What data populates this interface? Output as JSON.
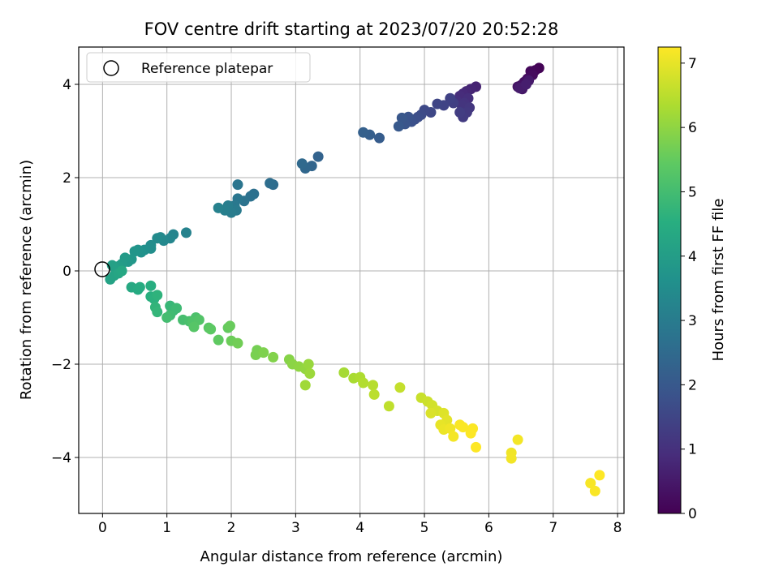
{
  "chart_data": {
    "type": "scatter",
    "title": "FOV centre drift starting at 2023/07/20 20:52:28",
    "xlabel": "Angular distance from reference (arcmin)",
    "ylabel": "Rotation from reference (arcmin)",
    "xlim": [
      -0.37,
      8.1
    ],
    "ylim": [
      -5.2,
      4.8
    ],
    "xticks": [
      0,
      1,
      2,
      3,
      4,
      5,
      6,
      7,
      8
    ],
    "yticks": [
      -4,
      -2,
      0,
      2,
      4
    ],
    "grid": true,
    "legend": {
      "placement": "top-left",
      "entries": [
        "Reference platepar"
      ]
    },
    "reference_point": {
      "name": "Reference platepar",
      "x": 0,
      "y": 0
    },
    "colorbar": {
      "label": "Hours from first FF file",
      "range": [
        0,
        7.25
      ],
      "ticks": [
        0,
        1,
        2,
        3,
        4,
        5,
        6,
        7
      ],
      "colormap": "viridis"
    },
    "points": [
      [
        6.78,
        4.35,
        0.05
      ],
      [
        6.72,
        4.3,
        0.1
      ],
      [
        6.65,
        4.28,
        0.15
      ],
      [
        6.68,
        4.2,
        0.2
      ],
      [
        6.6,
        4.12,
        0.25
      ],
      [
        6.55,
        4.05,
        0.3
      ],
      [
        6.5,
        3.98,
        0.35
      ],
      [
        6.45,
        3.95,
        0.4
      ],
      [
        6.52,
        3.9,
        0.45
      ],
      [
        6.62,
        4.08,
        0.5
      ],
      [
        6.48,
        3.92,
        0.55
      ],
      [
        6.58,
        4.0,
        0.6
      ],
      [
        5.8,
        3.95,
        0.7
      ],
      [
        5.72,
        3.9,
        0.75
      ],
      [
        5.65,
        3.85,
        0.8
      ],
      [
        5.6,
        3.8,
        0.85
      ],
      [
        5.55,
        3.75,
        0.9
      ],
      [
        5.68,
        3.7,
        0.95
      ],
      [
        5.5,
        3.65,
        1.0
      ],
      [
        5.62,
        3.6,
        1.05
      ],
      [
        5.58,
        3.55,
        1.1
      ],
      [
        5.7,
        3.5,
        1.15
      ],
      [
        5.66,
        3.4,
        1.2
      ],
      [
        5.6,
        3.3,
        1.25
      ],
      [
        5.55,
        3.4,
        1.3
      ],
      [
        5.45,
        3.6,
        1.35
      ],
      [
        5.4,
        3.7,
        1.4
      ],
      [
        5.3,
        3.55,
        1.45
      ],
      [
        5.2,
        3.58,
        1.5
      ],
      [
        5.1,
        3.4,
        1.55
      ],
      [
        5.0,
        3.45,
        1.6
      ],
      [
        4.95,
        3.35,
        1.65
      ],
      [
        4.9,
        3.3,
        1.7
      ],
      [
        4.85,
        3.25,
        1.75
      ],
      [
        4.8,
        3.2,
        1.8
      ],
      [
        4.75,
        3.3,
        1.85
      ],
      [
        4.7,
        3.15,
        1.9
      ],
      [
        4.65,
        3.28,
        1.95
      ],
      [
        4.6,
        3.1,
        2.0
      ],
      [
        4.3,
        2.85,
        2.1
      ],
      [
        4.15,
        2.92,
        2.15
      ],
      [
        4.05,
        2.97,
        2.2
      ],
      [
        3.35,
        2.45,
        2.3
      ],
      [
        3.25,
        2.25,
        2.35
      ],
      [
        3.15,
        2.2,
        2.4
      ],
      [
        3.1,
        2.3,
        2.45
      ],
      [
        2.65,
        1.85,
        2.55
      ],
      [
        2.6,
        1.88,
        2.6
      ],
      [
        2.35,
        1.65,
        2.65
      ],
      [
        2.3,
        1.6,
        2.7
      ],
      [
        2.2,
        1.5,
        2.75
      ],
      [
        2.1,
        1.85,
        2.8
      ],
      [
        2.1,
        1.55,
        2.85
      ],
      [
        2.05,
        1.4,
        2.9
      ],
      [
        2.08,
        1.3,
        2.95
      ],
      [
        2.0,
        1.25,
        3.0
      ],
      [
        1.95,
        1.4,
        3.05
      ],
      [
        1.9,
        1.3,
        3.1
      ],
      [
        1.8,
        1.35,
        3.15
      ],
      [
        1.3,
        0.82,
        3.2
      ],
      [
        1.1,
        0.78,
        3.25
      ],
      [
        1.05,
        0.7,
        3.3
      ],
      [
        0.95,
        0.65,
        3.35
      ],
      [
        0.9,
        0.72,
        3.4
      ],
      [
        0.85,
        0.7,
        3.45
      ],
      [
        0.75,
        0.55,
        3.5
      ],
      [
        0.75,
        0.48,
        3.55
      ],
      [
        0.65,
        0.45,
        3.6
      ],
      [
        0.6,
        0.4,
        3.65
      ],
      [
        0.55,
        0.45,
        3.7
      ],
      [
        0.5,
        0.42,
        3.75
      ],
      [
        0.45,
        0.25,
        3.8
      ],
      [
        0.4,
        0.2,
        3.85
      ],
      [
        0.35,
        0.28,
        3.9
      ],
      [
        0.3,
        0.15,
        3.95
      ],
      [
        0.25,
        0.1,
        4.0
      ],
      [
        0.2,
        0.05,
        4.05
      ],
      [
        0.15,
        0.12,
        4.1
      ],
      [
        0.12,
        -0.18,
        4.15
      ],
      [
        0.18,
        -0.1,
        4.2
      ],
      [
        0.25,
        -0.05,
        4.25
      ],
      [
        0.3,
        0.0,
        4.3
      ],
      [
        0.45,
        -0.35,
        4.35
      ],
      [
        0.55,
        -0.4,
        4.4
      ],
      [
        0.58,
        -0.35,
        4.45
      ],
      [
        0.75,
        -0.32,
        4.5
      ],
      [
        0.75,
        -0.55,
        4.55
      ],
      [
        0.8,
        -0.6,
        4.6
      ],
      [
        0.85,
        -0.52,
        4.65
      ],
      [
        0.82,
        -0.78,
        4.7
      ],
      [
        0.85,
        -0.88,
        4.75
      ],
      [
        1.05,
        -0.75,
        4.8
      ],
      [
        1.1,
        -0.85,
        4.85
      ],
      [
        1.15,
        -0.8,
        4.9
      ],
      [
        1.05,
        -0.95,
        4.95
      ],
      [
        1.0,
        -1.0,
        5.0
      ],
      [
        1.25,
        -1.05,
        5.05
      ],
      [
        1.35,
        -1.08,
        5.1
      ],
      [
        1.45,
        -1.0,
        5.15
      ],
      [
        1.4,
        -1.1,
        5.2
      ],
      [
        1.5,
        -1.05,
        5.25
      ],
      [
        1.42,
        -1.2,
        5.3
      ],
      [
        1.65,
        -1.22,
        5.35
      ],
      [
        1.68,
        -1.25,
        5.4
      ],
      [
        1.8,
        -1.48,
        5.45
      ],
      [
        1.95,
        -1.22,
        5.5
      ],
      [
        1.98,
        -1.18,
        5.55
      ],
      [
        2.0,
        -1.5,
        5.6
      ],
      [
        2.1,
        -1.55,
        5.65
      ],
      [
        2.4,
        -1.7,
        5.7
      ],
      [
        2.38,
        -1.8,
        5.75
      ],
      [
        2.5,
        -1.75,
        5.8
      ],
      [
        2.65,
        -1.85,
        5.85
      ],
      [
        2.9,
        -1.9,
        5.9
      ],
      [
        2.95,
        -2.0,
        5.95
      ],
      [
        3.05,
        -2.05,
        6.0
      ],
      [
        3.15,
        -2.1,
        6.05
      ],
      [
        3.2,
        -2.0,
        6.1
      ],
      [
        3.22,
        -2.2,
        6.15
      ],
      [
        3.15,
        -2.45,
        6.2
      ],
      [
        3.75,
        -2.18,
        6.25
      ],
      [
        3.9,
        -2.3,
        6.3
      ],
      [
        4.0,
        -2.28,
        6.35
      ],
      [
        4.05,
        -2.4,
        6.4
      ],
      [
        4.2,
        -2.45,
        6.45
      ],
      [
        4.22,
        -2.65,
        6.5
      ],
      [
        4.45,
        -2.9,
        6.55
      ],
      [
        4.62,
        -2.5,
        6.6
      ],
      [
        4.95,
        -2.72,
        6.65
      ],
      [
        5.05,
        -2.8,
        6.7
      ],
      [
        5.12,
        -2.88,
        6.75
      ],
      [
        5.2,
        -3.0,
        6.8
      ],
      [
        5.1,
        -3.05,
        6.85
      ],
      [
        5.3,
        -3.05,
        6.9
      ],
      [
        5.35,
        -3.2,
        6.95
      ],
      [
        5.25,
        -3.3,
        7.0
      ],
      [
        5.3,
        -3.4,
        7.05
      ],
      [
        5.4,
        -3.38,
        7.1
      ],
      [
        5.45,
        -3.55,
        7.15
      ],
      [
        5.55,
        -3.3,
        7.2
      ],
      [
        5.6,
        -3.35,
        7.22
      ],
      [
        5.75,
        -3.38,
        7.23
      ],
      [
        5.72,
        -3.48,
        7.24
      ],
      [
        5.8,
        -3.78,
        7.25
      ],
      [
        6.35,
        -3.9,
        7.1
      ],
      [
        6.35,
        -4.02,
        7.12
      ],
      [
        6.45,
        -3.62,
        7.14
      ],
      [
        7.58,
        -4.55,
        7.18
      ],
      [
        7.65,
        -4.72,
        7.2
      ],
      [
        7.72,
        -4.38,
        7.25
      ]
    ]
  }
}
